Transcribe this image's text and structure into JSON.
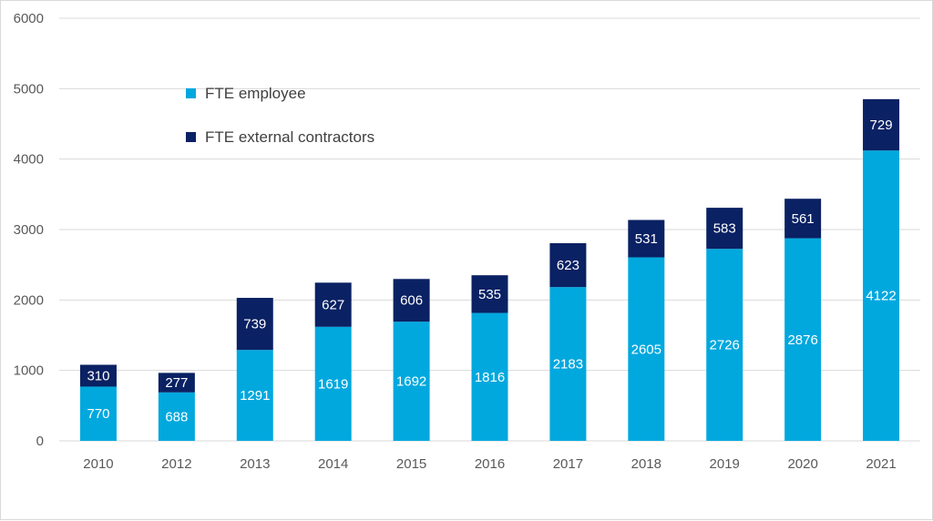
{
  "chart_data": {
    "type": "bar",
    "stacked": true,
    "categories": [
      "2010",
      "2012",
      "2013",
      "2014",
      "2015",
      "2016",
      "2017",
      "2018",
      "2019",
      "2020",
      "2021"
    ],
    "series": [
      {
        "name": "FTE employee",
        "color": "#00A8DE",
        "values": [
          770,
          688,
          1291,
          1619,
          1692,
          1816,
          2183,
          2605,
          2726,
          2876,
          4122
        ]
      },
      {
        "name": "FTE external contractors",
        "color": "#0A2163",
        "values": [
          310,
          277,
          739,
          627,
          606,
          535,
          623,
          531,
          583,
          561,
          729
        ]
      }
    ],
    "ylim": [
      0,
      6000
    ],
    "yticks": [
      0,
      1000,
      2000,
      3000,
      4000,
      5000,
      6000
    ],
    "grid": true,
    "legend_position": "top-left",
    "data_labels": true,
    "gridline_color": "#d9d9d9"
  }
}
